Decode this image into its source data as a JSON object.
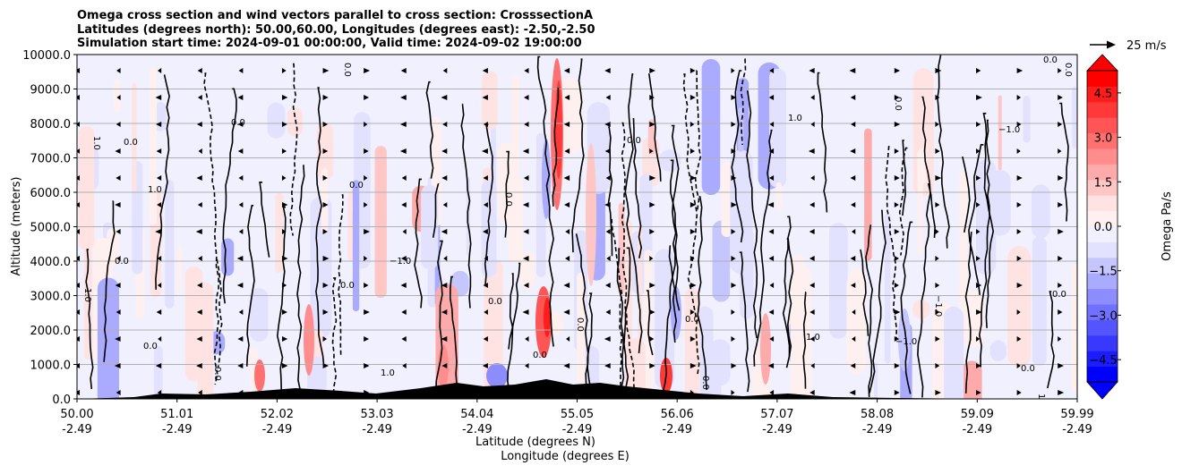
{
  "chart_data": {
    "type": "contour",
    "title_lines": [
      "Omega cross section and wind vectors parallel to cross section: CrosssectionA",
      "Latitudes (degrees north): 50.00,60.00, Longitudes (degrees east): -2.50,-2.50",
      "Simulation start time: 2024-09-01 00:00:00, Valid time: 2024-09-02 19:00:00"
    ],
    "ylabel": "Altitude (meters)",
    "xlabel_lines": [
      "Latitude (degrees N)",
      "Longitude (degrees E)"
    ],
    "ylim": [
      0,
      10000
    ],
    "y_ticks": [
      "0.0",
      "1000.0",
      "2000.0",
      "3000.0",
      "4000.0",
      "5000.0",
      "6000.0",
      "7000.0",
      "8000.0",
      "9000.0",
      "10000.0"
    ],
    "x_ticks": [
      {
        "lat": "50.00",
        "lon": "-2.49"
      },
      {
        "lat": "51.01",
        "lon": "-2.49"
      },
      {
        "lat": "52.02",
        "lon": "-2.49"
      },
      {
        "lat": "53.03",
        "lon": "-2.49"
      },
      {
        "lat": "54.04",
        "lon": "-2.49"
      },
      {
        "lat": "55.05",
        "lon": "-2.49"
      },
      {
        "lat": "56.06",
        "lon": "-2.49"
      },
      {
        "lat": "57.07",
        "lon": "-2.49"
      },
      {
        "lat": "58.08",
        "lon": "-2.49"
      },
      {
        "lat": "59.09",
        "lon": "-2.49"
      },
      {
        "lat": "59.99",
        "lon": "-2.49"
      }
    ],
    "colorbar": {
      "label": "Omega Pa/s",
      "range": [
        -5.25,
        5.25
      ],
      "ticks": [
        "4.5",
        "3.0",
        "1.5",
        "0.0",
        "−1.5",
        "−3.0",
        "−4.5"
      ],
      "colors": [
        "#0000ff",
        "#1c1cff",
        "#3838ff",
        "#5555ff",
        "#7171ff",
        "#8d8dff",
        "#aaaaff",
        "#c6c6ff",
        "#e2e2ff",
        "#f0f0ff",
        "#fff0f0",
        "#ffe2e2",
        "#ffc6c6",
        "#ffaaaa",
        "#ff8d8d",
        "#ff7171",
        "#ff5555",
        "#ff3838",
        "#ff1c1c",
        "#ff0000"
      ],
      "extend": "both"
    },
    "wind_reference": {
      "label": "25 m/s"
    },
    "contour_labels": [
      "0.0",
      "1.0",
      "−1.0"
    ],
    "grid": true
  }
}
